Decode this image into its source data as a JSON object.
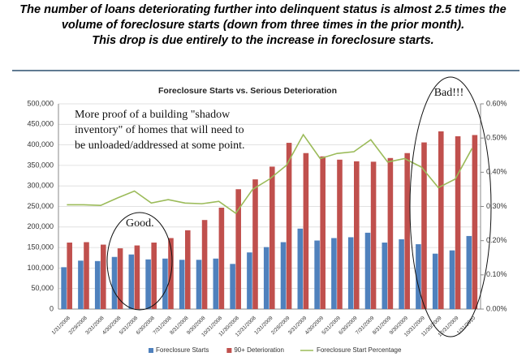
{
  "header": {
    "lines": [
      "The number of loans deteriorating further into delinquent status is almost 2.5 times the",
      "volume of foreclosure starts (down from three times in the prior month).",
      "This drop is due entirely to the increase in foreclosure starts."
    ]
  },
  "chart_data": {
    "type": "bar",
    "title": "Foreclosure Starts vs. Serious Deterioration",
    "categories": [
      "1/31/2008",
      "2/29/2008",
      "3/31/2008",
      "4/30/2008",
      "5/31/2008",
      "6/30/2008",
      "7/31/2008",
      "8/31/2008",
      "9/30/2008",
      "10/31/2008",
      "11/30/2008",
      "12/31/2008",
      "1/31/2009",
      "2/28/2009",
      "3/31/2009",
      "4/30/2009",
      "5/31/2009",
      "6/30/2009",
      "7/31/2009",
      "8/31/2009",
      "9/30/2009",
      "10/31/2009",
      "11/30/2009",
      "12/31/2009",
      "1/31/2010"
    ],
    "series": [
      {
        "name": "Foreclosure Starts",
        "color": "#4f81bd",
        "values": [
          102000,
          118000,
          117000,
          127000,
          133000,
          121000,
          123000,
          120000,
          120000,
          123000,
          110000,
          138000,
          151000,
          163000,
          196000,
          167000,
          173000,
          175000,
          186000,
          162000,
          170000,
          158000,
          135000,
          143000,
          178000
        ]
      },
      {
        "name": "90+ Deterioration",
        "color": "#c0504d",
        "values": [
          162000,
          163000,
          157000,
          148000,
          155000,
          162000,
          173000,
          192000,
          217000,
          247000,
          292000,
          316000,
          347000,
          405000,
          380000,
          372000,
          364000,
          360000,
          359000,
          368000,
          380000,
          406000,
          433000,
          421000,
          424000
        ]
      },
      {
        "name": "Foreclosure Start Percentage",
        "color": "#9bbb59",
        "type": "line",
        "axis": "y2",
        "values": [
          0.305,
          0.305,
          0.303,
          0.325,
          0.345,
          0.31,
          0.32,
          0.31,
          0.308,
          0.315,
          0.28,
          0.35,
          0.38,
          0.42,
          0.51,
          0.44,
          0.455,
          0.46,
          0.495,
          0.43,
          0.44,
          0.415,
          0.355,
          0.38,
          0.47
        ]
      }
    ],
    "ylim": [
      0,
      500000
    ],
    "yticks": [
      0,
      {
        "value": 50000,
        "label": "50,000"
      },
      {
        "value": 100000,
        "label": "100,000"
      },
      {
        "value": 150000,
        "label": "150,000"
      },
      {
        "value": 200000,
        "label": "200,000"
      },
      {
        "value": 250000,
        "label": "250,000"
      },
      {
        "value": 300000,
        "label": "300,000"
      },
      {
        "value": 350000,
        "label": "350,000"
      },
      {
        "value": 400000,
        "label": "400,000"
      },
      {
        "value": 450000,
        "label": "450,000"
      },
      {
        "value": 500000,
        "label": "500,000"
      }
    ],
    "y2lim": [
      0,
      0.6
    ],
    "y2ticks": [
      {
        "value": 0,
        "label": "0.00%"
      },
      {
        "value": 0.1,
        "label": "0.10%"
      },
      {
        "value": 0.2,
        "label": "0.20%"
      },
      {
        "value": 0.3,
        "label": "0.30%"
      },
      {
        "value": 0.4,
        "label": "0.40%"
      },
      {
        "value": 0.5,
        "label": "0.50%"
      },
      {
        "value": 0.6,
        "label": "0.60%"
      }
    ],
    "grid": true,
    "legend": "bottom",
    "annotations": [
      {
        "lines": [
          "More proof of a building \"shadow",
          "inventory\" of homes that will need to",
          "be unloaded/addressed at some point."
        ]
      },
      {
        "lines": [
          "Good."
        ]
      },
      {
        "lines": [
          "Bad!!!"
        ]
      }
    ]
  }
}
